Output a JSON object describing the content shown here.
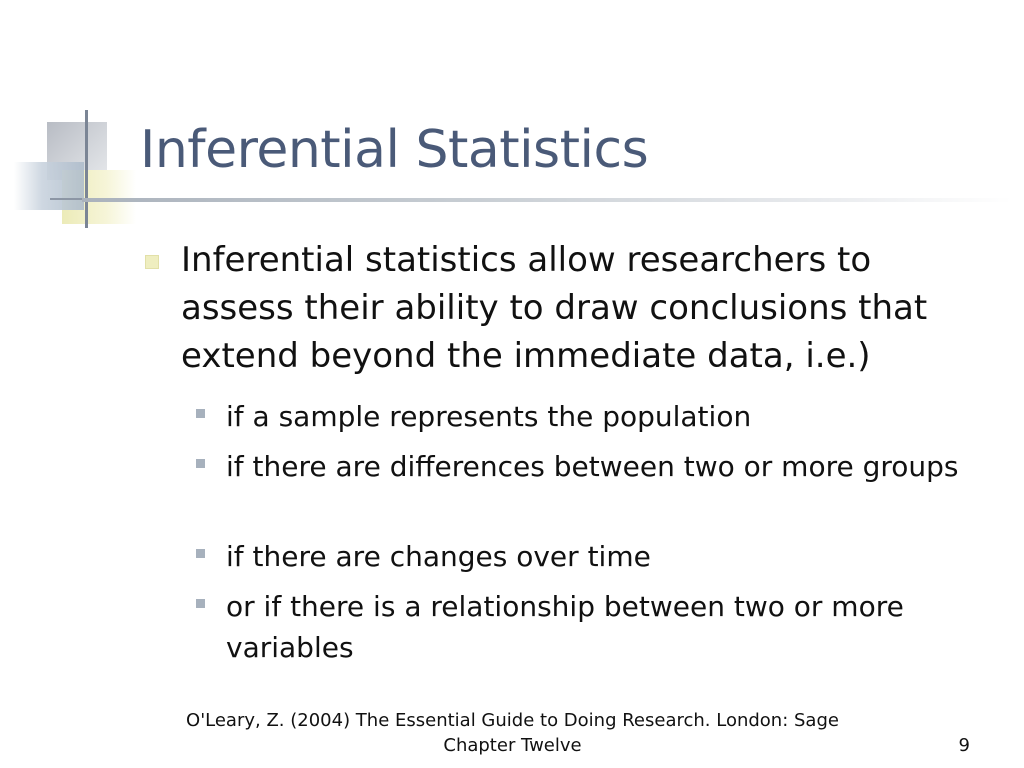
{
  "slide": {
    "title": "Inferential Statistics",
    "main_bullet": "Inferential statistics allow researchers to assess their ability to draw conclusions that extend beyond the immediate data, i.e.)",
    "sub_bullets": [
      "if a sample represents the population",
      "if there are differences between two or more groups",
      "if there are changes over time",
      "or if there is a relationship between two or more variables"
    ],
    "footer_line1": "O'Leary, Z. (2004) The Essential Guide to Doing Research. London: Sage",
    "footer_line2": "Chapter Twelve",
    "page_number": "9"
  },
  "colors": {
    "title": "#4a5a78",
    "main_bullet": "#efeec0",
    "sub_bullet": "#a7b1bd"
  }
}
